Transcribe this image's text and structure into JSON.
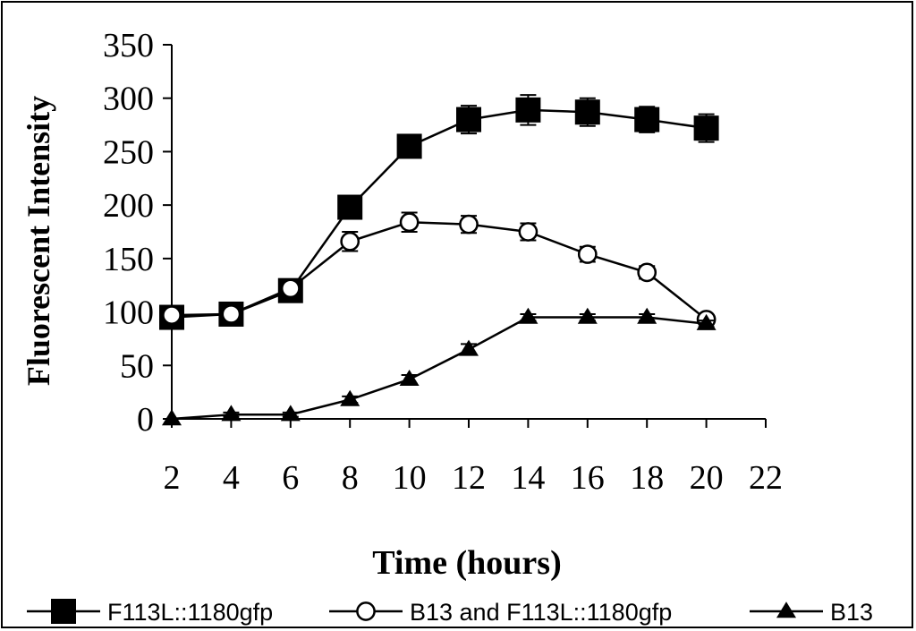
{
  "chart_data": {
    "type": "line",
    "title": "",
    "xlabel": "Time (hours)",
    "ylabel": "Fluorescent Intensity",
    "xlim": [
      2,
      22
    ],
    "ylim": [
      0,
      350
    ],
    "x_ticks": [
      "2",
      "4",
      "6",
      "8",
      "10",
      "12",
      "14",
      "16",
      "18",
      "20",
      "22"
    ],
    "y_ticks": [
      "0",
      "50",
      "100",
      "150",
      "200",
      "250",
      "300",
      "350"
    ],
    "grid": false,
    "legend_position": "bottom",
    "series": [
      {
        "name": "F113L::1180gfp",
        "marker": "square-filled",
        "color": "#000000",
        "x": [
          2,
          4,
          6,
          8,
          10,
          12,
          14,
          16,
          18,
          20
        ],
        "y": [
          95,
          98,
          120,
          198,
          255,
          280,
          289,
          287,
          280,
          272
        ],
        "err": [
          3,
          3,
          4,
          5,
          6,
          13,
          14,
          13,
          12,
          13
        ]
      },
      {
        "name": "B13 and F113L::1180gfp",
        "marker": "circle-open",
        "color": "#000000",
        "x": [
          2,
          4,
          6,
          8,
          10,
          12,
          14,
          16,
          18,
          20
        ],
        "y": [
          97,
          98,
          122,
          166,
          184,
          182,
          175,
          154,
          137,
          93
        ],
        "err": [
          2,
          2,
          3,
          9,
          9,
          8,
          8,
          7,
          6,
          3
        ]
      },
      {
        "name": "B13",
        "marker": "triangle-filled",
        "color": "#000000",
        "x": [
          2,
          4,
          6,
          8,
          10,
          12,
          14,
          16,
          18,
          20
        ],
        "y": [
          0,
          4,
          4,
          18,
          37,
          65,
          95,
          95,
          95,
          89
        ],
        "err": [
          0,
          2,
          2,
          3,
          4,
          5,
          3,
          3,
          3,
          3
        ]
      }
    ]
  }
}
